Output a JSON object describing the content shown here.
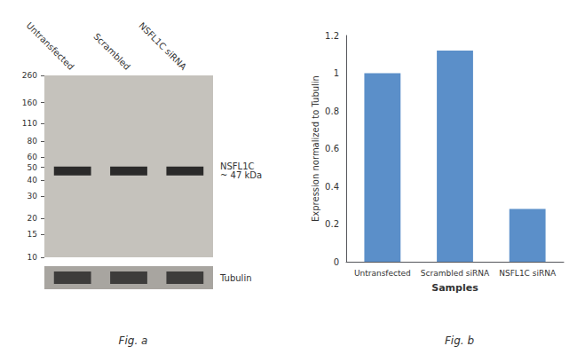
{
  "chart_data": [
    {
      "type": "blot",
      "title": "Fig. a",
      "categories": [
        "Untransfected",
        "Scrambled",
        "NSFL1C siRNA"
      ],
      "values": [
        47,
        47,
        47
      ],
      "color": "#1a1a1a",
      "log": "y",
      "ylim": [
        10,
        260
      ],
      "yticks": [
        10,
        15,
        20,
        30,
        40,
        50,
        60,
        80,
        110,
        160,
        260
      ],
      "grid": false,
      "annotations": [
        {
          "text": "NSFL1C\n~ 47 kDa",
          "y": 47
        },
        {
          "text": "Tubulin"
        }
      ]
    },
    {
      "type": "bar",
      "title": "Fig. b",
      "categories": [
        "Untransfected",
        "Scrambled siRNA",
        "NSFL1C siRNA"
      ],
      "values": [
        1.0,
        1.12,
        0.28
      ],
      "color": "#5b8fc9",
      "xlabel": "Samples",
      "ylabel": "Expression normalized to Tubulin",
      "ylim": [
        0,
        1.2
      ],
      "yticks": [
        0,
        0.2,
        0.4,
        0.6,
        0.8,
        1.0,
        1.2
      ],
      "grid": false
    }
  ]
}
